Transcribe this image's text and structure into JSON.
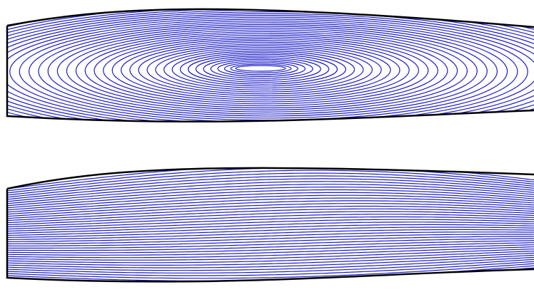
{
  "chart_data": [
    {
      "type": "contour",
      "color": "#1c1cc8"
    },
    {
      "type": "streamline",
      "color": "#1c1cc8"
    }
  ]
}
